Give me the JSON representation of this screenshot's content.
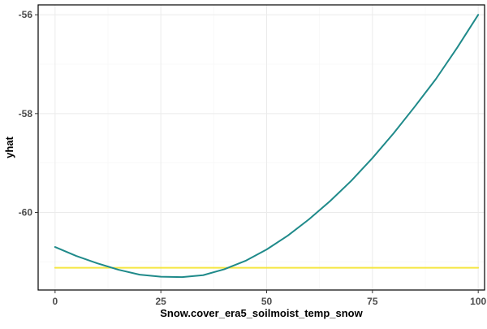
{
  "chart_data": {
    "type": "line",
    "title": "",
    "xlabel": "Snow.cover_era5_soilmoist_temp_snow",
    "ylabel": "yhat",
    "xlim": [
      -4,
      101.5
    ],
    "ylim": [
      -61.57,
      -55.8
    ],
    "x_ticks": [
      0,
      25,
      50,
      75,
      100
    ],
    "x_tick_labels": [
      "0",
      "25",
      "50",
      "75",
      "100"
    ],
    "y_ticks": [
      -60,
      -58,
      -56
    ],
    "y_tick_labels": [
      "-60",
      "-58",
      "-56"
    ],
    "grid": true,
    "legend": "none",
    "series": [
      {
        "color": "#1f8a8a",
        "x": [
          0,
          5,
          10,
          15,
          20,
          25,
          30,
          35,
          40,
          45,
          50,
          55,
          60,
          65,
          70,
          75,
          80,
          85,
          90,
          95,
          100
        ],
        "y": [
          -60.7,
          -60.88,
          -61.03,
          -61.16,
          -61.26,
          -61.3,
          -61.31,
          -61.27,
          -61.15,
          -60.98,
          -60.75,
          -60.47,
          -60.14,
          -59.77,
          -59.36,
          -58.9,
          -58.4,
          -57.86,
          -57.3,
          -56.67,
          -56.0
        ]
      },
      {
        "color": "#f5e642",
        "x": [
          0,
          100
        ],
        "y": [
          -61.12,
          -61.12
        ]
      }
    ]
  }
}
